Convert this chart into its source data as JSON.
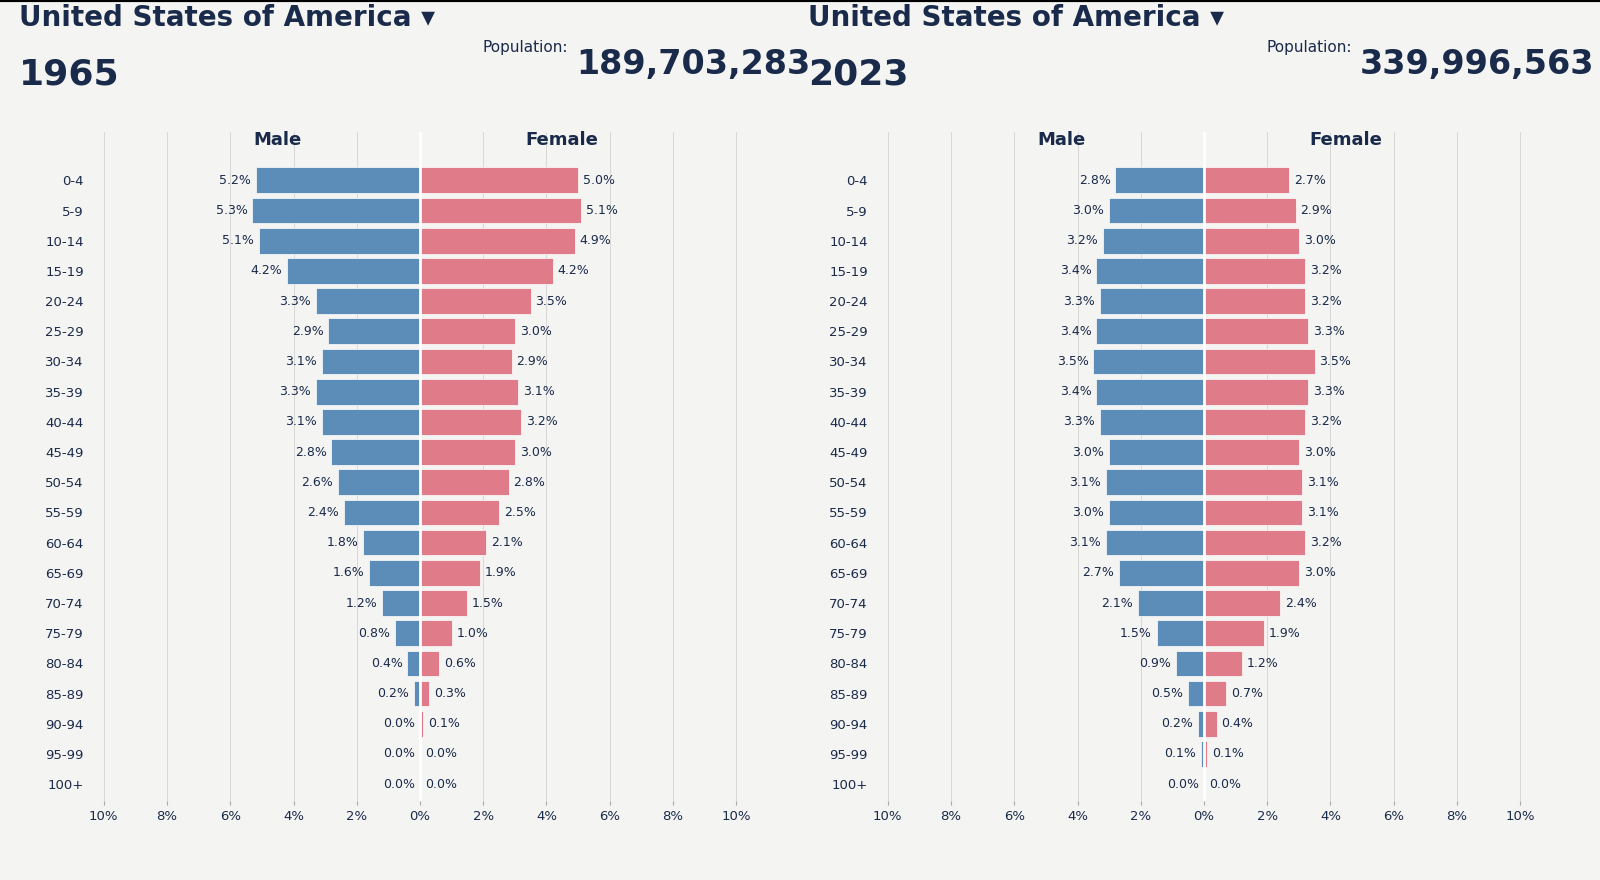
{
  "title1": "United States of America ▾",
  "year1": "1965",
  "pop1_num": "189,703,283",
  "title2": "United States of America ▾",
  "year2": "2023",
  "pop2_num": "339,996,563",
  "age_groups": [
    "100+",
    "95-99",
    "90-94",
    "85-89",
    "80-84",
    "75-79",
    "70-74",
    "65-69",
    "60-64",
    "55-59",
    "50-54",
    "45-49",
    "40-44",
    "35-39",
    "30-34",
    "25-29",
    "20-24",
    "15-19",
    "10-14",
    "5-9",
    "0-4"
  ],
  "male1": [
    0.0,
    0.0,
    0.0,
    0.2,
    0.4,
    0.8,
    1.2,
    1.6,
    1.8,
    2.4,
    2.6,
    2.8,
    3.1,
    3.3,
    3.1,
    2.9,
    3.3,
    4.2,
    5.1,
    5.3,
    5.2
  ],
  "female1": [
    0.0,
    0.0,
    0.1,
    0.3,
    0.6,
    1.0,
    1.5,
    1.9,
    2.1,
    2.5,
    2.8,
    3.0,
    3.2,
    3.1,
    2.9,
    3.0,
    3.5,
    4.2,
    4.9,
    5.1,
    5.0
  ],
  "male2": [
    0.0,
    0.1,
    0.2,
    0.5,
    0.9,
    1.5,
    2.1,
    2.7,
    3.1,
    3.0,
    3.1,
    3.0,
    3.3,
    3.4,
    3.5,
    3.4,
    3.3,
    3.4,
    3.2,
    3.0,
    2.8
  ],
  "female2": [
    0.0,
    0.1,
    0.4,
    0.7,
    1.2,
    1.9,
    2.4,
    3.0,
    3.2,
    3.1,
    3.1,
    3.0,
    3.2,
    3.3,
    3.5,
    3.3,
    3.2,
    3.2,
    3.0,
    2.9,
    2.7
  ],
  "male_color": "#5b8db8",
  "female_color": "#e07b8a",
  "bg_color": "#f4f4f2",
  "text_color": "#1a2a4a",
  "bar_height": 0.85,
  "xlim": 10.5,
  "title_fontsize": 20,
  "year_fontsize": 26,
  "pop_label_fontsize": 11,
  "pop_val_fontsize": 24,
  "bar_label_fontsize": 9,
  "tick_label_fontsize": 9.5,
  "male_female_fontsize": 13
}
